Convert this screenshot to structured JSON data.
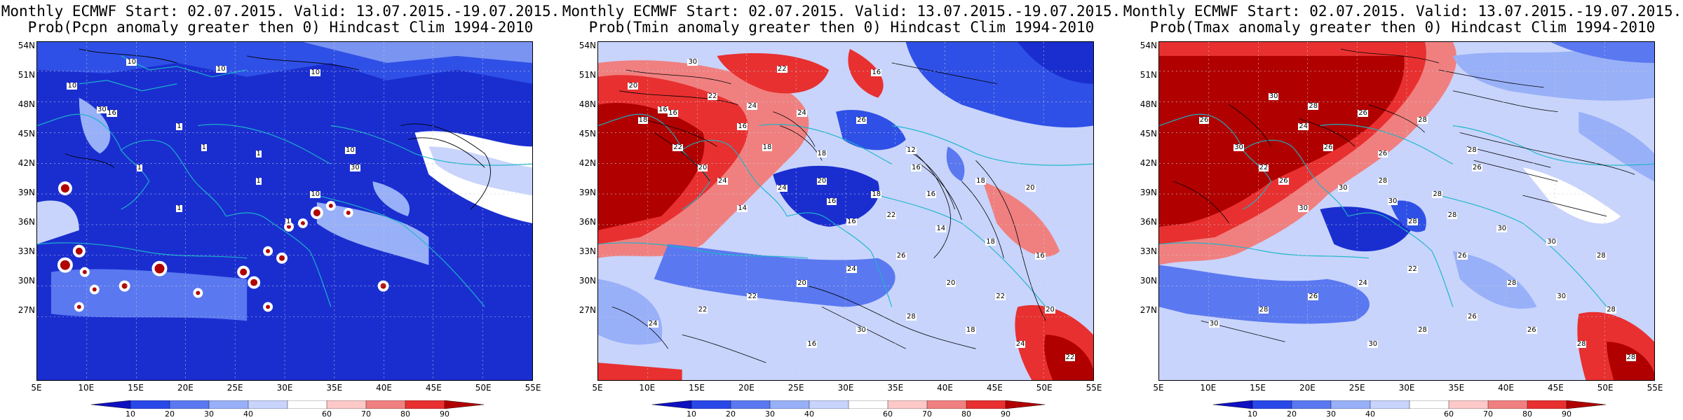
{
  "panels": [
    {
      "title_line1": "Monthly ECMWF Start: 02.07.2015. Valid: 13.07.2015.-19.07.2015.",
      "title_line2": "Prob(Pcpn anomaly greater then 0) Hindcast Clim 1994-2010",
      "variable": "Pcpn",
      "dominant_color": "#1030d8",
      "contour_labels": [
        "10",
        "10",
        "10",
        "10",
        "16",
        "30",
        "1",
        "1",
        "1",
        "1",
        "10",
        "30",
        "1",
        "10",
        "1",
        "1"
      ]
    },
    {
      "title_line1": "Monthly ECMWF Start: 02.07.2015. Valid: 13.07.2015.-19.07.2015.",
      "title_line2": "Prob(Tmin anomaly greater then 0) Hindcast Clim 1994-2010",
      "variable": "Tmin",
      "dominant_color": "#c8102e",
      "contour_labels": [
        "16",
        "16",
        "16",
        "16",
        "18",
        "20",
        "18",
        "12",
        "16",
        "20",
        "18",
        "14",
        "16",
        "18",
        "22",
        "24",
        "24",
        "26",
        "22",
        "24",
        "24",
        "16",
        "22",
        "14",
        "18",
        "16",
        "26",
        "24",
        "20",
        "22",
        "22",
        "24",
        "20",
        "22",
        "20",
        "28",
        "30",
        "16",
        "18",
        "24",
        "22",
        "20",
        "18",
        "16",
        "30",
        "20",
        "22"
      ]
    },
    {
      "title_line1": "Monthly ECMWF Start: 02.07.2015. Valid: 13.07.2015.-19.07.2015.",
      "title_line2": "Prob(Tmax anomaly greater then 0) Hindcast Clim 1994-2010",
      "variable": "Tmax",
      "dominant_color": "#c8102e",
      "contour_labels": [
        "24",
        "26",
        "22",
        "26",
        "28",
        "26",
        "28",
        "28",
        "30",
        "28",
        "26",
        "30",
        "28",
        "26",
        "28",
        "30",
        "26",
        "30",
        "30",
        "28",
        "30",
        "30",
        "28",
        "26",
        "22",
        "24",
        "26",
        "28",
        "30",
        "28",
        "30",
        "28",
        "26",
        "28",
        "30",
        "26",
        "28",
        "28"
      ]
    }
  ],
  "axes": {
    "lat_labels": [
      "54N",
      "51N",
      "48N",
      "45N",
      "42N",
      "39N",
      "36N",
      "33N",
      "30N",
      "27N"
    ],
    "lon_labels": [
      "5E",
      "10E",
      "15E",
      "20E",
      "25E",
      "30E",
      "35E",
      "40E",
      "45E",
      "50E",
      "55E"
    ]
  },
  "colorbar": {
    "labels": [
      "10",
      "20",
      "30",
      "40",
      "60",
      "70",
      "80",
      "90"
    ],
    "colors": [
      "#1010c0",
      "#2848e8",
      "#5a78f0",
      "#98b0f8",
      "#c8d4fc",
      "#ffffff",
      "#fcc8c8",
      "#f08080",
      "#e83030",
      "#b00000"
    ]
  }
}
